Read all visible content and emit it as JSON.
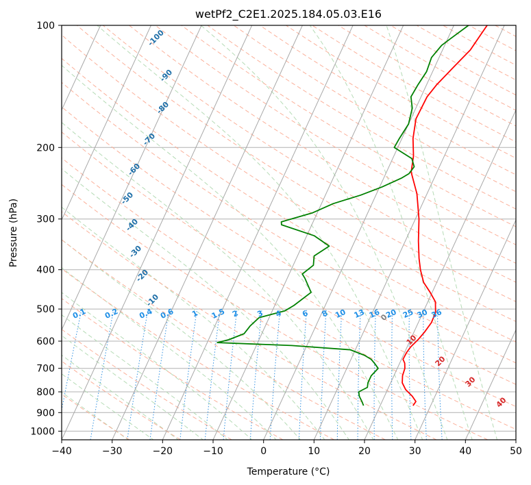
{
  "chart_data": {
    "type": "line",
    "title": "wetPf2_C2E1.2025.184.05.03.E16",
    "xlabel": "Temperature (°C)",
    "ylabel": "Pressure (hPa)",
    "xlim": [
      -40,
      50
    ],
    "ylim": [
      1050,
      100
    ],
    "y_scale": "log",
    "grid": true,
    "x_ticks": [
      -40,
      -30,
      -20,
      -10,
      0,
      10,
      20,
      30,
      40,
      50
    ],
    "y_ticks": [
      100,
      200,
      300,
      400,
      500,
      600,
      700,
      800,
      900,
      1000
    ],
    "series": [
      {
        "color": "#ff0000",
        "points": [
          [
            865,
            26.5
          ],
          [
            845,
            26.7
          ],
          [
            820,
            25.5
          ],
          [
            790,
            23.6
          ],
          [
            760,
            22.3
          ],
          [
            730,
            21.7
          ],
          [
            700,
            21.5
          ],
          [
            680,
            21.0
          ],
          [
            665,
            20.3
          ],
          [
            640,
            20.4
          ],
          [
            620,
            20.7
          ],
          [
            595,
            21.5
          ],
          [
            570,
            22.1
          ],
          [
            540,
            22.6
          ],
          [
            510,
            22.5
          ],
          [
            480,
            21.5
          ],
          [
            455,
            19.6
          ],
          [
            430,
            17.4
          ],
          [
            400,
            15.6
          ],
          [
            375,
            14.3
          ],
          [
            340,
            12.6
          ],
          [
            300,
            10.7
          ],
          [
            260,
            8.0
          ],
          [
            230,
            4.9
          ],
          [
            210,
            3.9
          ],
          [
            190,
            2.2
          ],
          [
            170,
            1.0
          ],
          [
            150,
            1.2
          ],
          [
            140,
            2.0
          ],
          [
            125,
            4.0
          ],
          [
            115,
            5.5
          ],
          [
            105,
            6.2
          ],
          [
            100,
            6.6
          ]
        ]
      },
      {
        "color": "#008000",
        "points": [
          [
            865,
            16.7
          ],
          [
            845,
            16.0
          ],
          [
            820,
            15.0
          ],
          [
            800,
            14.5
          ],
          [
            780,
            15.8
          ],
          [
            760,
            15.5
          ],
          [
            730,
            15.5
          ],
          [
            700,
            16.2
          ],
          [
            680,
            15.0
          ],
          [
            665,
            14.0
          ],
          [
            650,
            12.3
          ],
          [
            630,
            9.0
          ],
          [
            615,
            -3.0
          ],
          [
            605,
            -18.0
          ],
          [
            595,
            -16.0
          ],
          [
            575,
            -13.5
          ],
          [
            550,
            -13.0
          ],
          [
            525,
            -12.0
          ],
          [
            505,
            -7.5
          ],
          [
            490,
            -6.2
          ],
          [
            455,
            -4.0
          ],
          [
            420,
            -6.5
          ],
          [
            410,
            -7.4
          ],
          [
            390,
            -6.0
          ],
          [
            370,
            -6.7
          ],
          [
            350,
            -4.6
          ],
          [
            330,
            -8.5
          ],
          [
            310,
            -16.0
          ],
          [
            305,
            -16.3
          ],
          [
            290,
            -11.0
          ],
          [
            275,
            -7.7
          ],
          [
            262,
            -3.0
          ],
          [
            250,
            0.5
          ],
          [
            238,
            3.5
          ],
          [
            232,
            4.6
          ],
          [
            223,
            5.0
          ],
          [
            213,
            3.8
          ],
          [
            200,
            -0.7
          ],
          [
            190,
            -0.5
          ],
          [
            175,
            0.0
          ],
          [
            160,
            -0.7
          ],
          [
            150,
            -2.0
          ],
          [
            140,
            -1.7
          ],
          [
            130,
            -1.2
          ],
          [
            120,
            -1.5
          ],
          [
            112,
            -0.6
          ],
          [
            108,
            0.5
          ],
          [
            100,
            2.9
          ]
        ]
      }
    ],
    "mixing_ratio_labels": [
      "0.1",
      "0.2",
      "0.4",
      "0.6",
      "1",
      "1.5",
      "2",
      "3",
      "4",
      "6",
      "8",
      "10",
      "13",
      "16",
      "20",
      "25",
      "30",
      "36"
    ],
    "dry_adiabat_labels": [
      "-100",
      "-90",
      "-80",
      "-70",
      "-60",
      "-50",
      "-40",
      "-30",
      "-20",
      "-10"
    ],
    "moist_adiabat_labels": [
      "0",
      "10",
      "20",
      "30",
      "40"
    ]
  }
}
